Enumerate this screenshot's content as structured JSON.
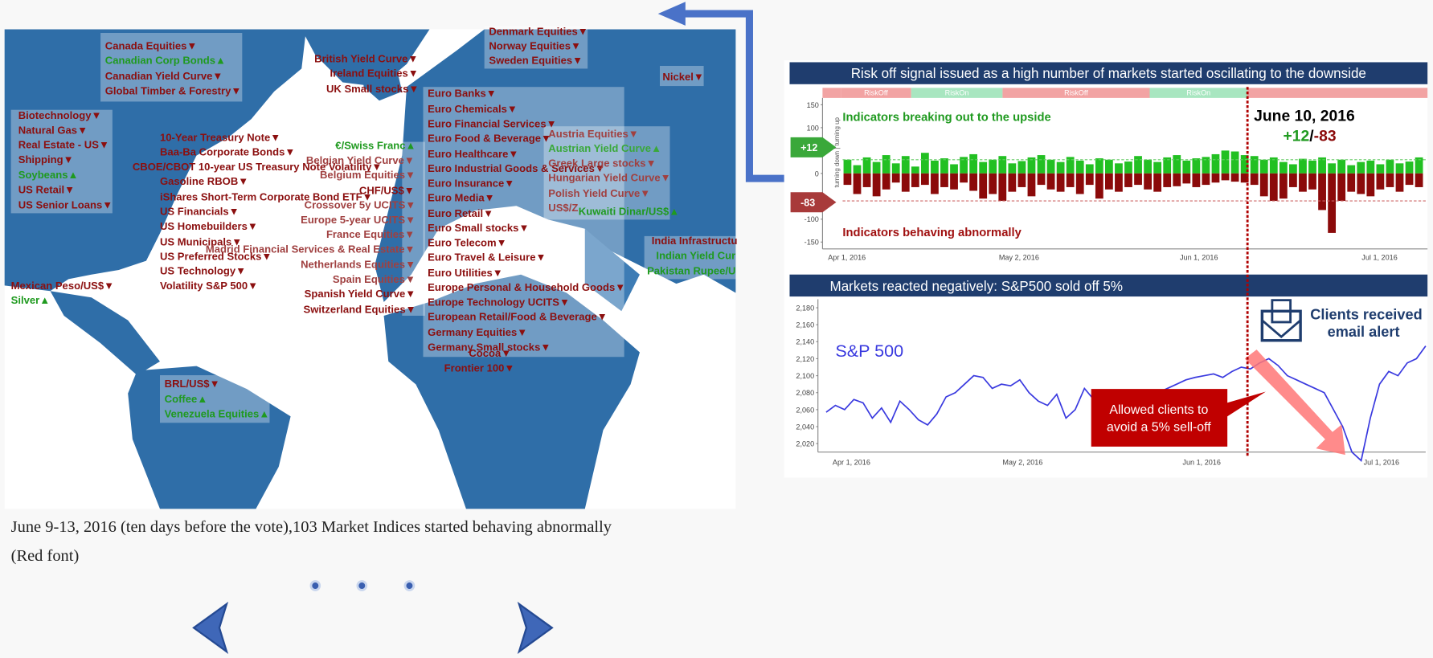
{
  "map_labels": [
    {
      "text": "Canada Equities▼",
      "color": "#8b0f0f"
    },
    {
      "text": "Canadian Corp Bonds▲",
      "color": "#1f9a1f"
    },
    {
      "text": "Canadian Yield Curve▼",
      "color": "#8b0f0f"
    },
    {
      "text": "Global Timber & Forestry▼",
      "color": "#8b0f0f"
    },
    {
      "text": "Biotechnology▼",
      "color": "#8b0f0f"
    },
    {
      "text": "Natural Gas▼",
      "color": "#8b0f0f"
    },
    {
      "text": "Real Estate - US▼",
      "color": "#8b0f0f"
    },
    {
      "text": "Shipping▼",
      "color": "#8b0f0f"
    },
    {
      "text": "Soybeans▲",
      "color": "#1f9a1f"
    },
    {
      "text": "US Retail▼",
      "color": "#8b0f0f"
    },
    {
      "text": "US Senior Loans▼",
      "color": "#8b0f0f"
    },
    {
      "text": "10-Year Treasury Note▼",
      "color": "#8b0f0f"
    },
    {
      "text": "Baa-Ba Corporate Bonds▼",
      "color": "#8b0f0f"
    },
    {
      "text": "CBOE/CBOT 10-year US Treasury Note Volatility▼",
      "color": "#8b0f0f"
    },
    {
      "text": "Gasoline RBOB▼",
      "color": "#8b0f0f"
    },
    {
      "text": "iShares Short-Term Corporate Bond ETF▼",
      "color": "#8b0f0f"
    },
    {
      "text": "US Financials▼",
      "color": "#8b0f0f"
    },
    {
      "text": "US Homebuilders▼",
      "color": "#8b0f0f"
    },
    {
      "text": "US Municipals▼",
      "color": "#8b0f0f"
    },
    {
      "text": "Madrid Financial Services & Real Estate▼",
      "color": "#a04040"
    },
    {
      "text": "US Preferred Stocks▼",
      "color": "#8b0f0f"
    },
    {
      "text": "US Technology▼",
      "color": "#8b0f0f"
    },
    {
      "text": "Volatility S&P 500▼",
      "color": "#8b0f0f"
    },
    {
      "text": "Mexican Peso/US$▼",
      "color": "#8b0f0f"
    },
    {
      "text": "Silver▲",
      "color": "#1f9a1f"
    },
    {
      "text": "BRL/US$▼",
      "color": "#8b0f0f"
    },
    {
      "text": "Coffee▲",
      "color": "#1f9a1f"
    },
    {
      "text": "Venezuela Equities▲",
      "color": "#1f9a1f"
    },
    {
      "text": "British Yield Curve▼",
      "color": "#8b0f0f"
    },
    {
      "text": "Ireland Equities▼",
      "color": "#8b0f0f"
    },
    {
      "text": "UK Small stocks▼",
      "color": "#8b0f0f"
    },
    {
      "text": "€/Swiss Franc▲",
      "color": "#1f9a1f"
    },
    {
      "text": "Belgian Yield Curve▼",
      "color": "#a04040"
    },
    {
      "text": "Belgium Equities▼",
      "color": "#a04040"
    },
    {
      "text": "CHF/US$▼",
      "color": "#8b0f0f"
    },
    {
      "text": "Crossover 5y UCITS▼",
      "color": "#a04040"
    },
    {
      "text": "Europe 5-year UCITS▼",
      "color": "#a04040"
    },
    {
      "text": "France Equities▼",
      "color": "#a04040"
    },
    {
      "text": "Netherlands Equities▼",
      "color": "#a04040"
    },
    {
      "text": "Spain Equities▼",
      "color": "#a04040"
    },
    {
      "text": "Spanish Yield Curve▼",
      "color": "#8b0f0f"
    },
    {
      "text": "Switzerland Equities▼",
      "color": "#8b0f0f"
    },
    {
      "text": "Denmark Equities▼",
      "color": "#8b0f0f"
    },
    {
      "text": "Norway Equities▼",
      "color": "#8b0f0f"
    },
    {
      "text": "Sweden Equities▼",
      "color": "#8b0f0f"
    },
    {
      "text": "Euro Banks▼",
      "color": "#8b0f0f"
    },
    {
      "text": "Euro Chemicals▼",
      "color": "#8b0f0f"
    },
    {
      "text": "Euro Financial Services▼",
      "color": "#8b0f0f"
    },
    {
      "text": "Euro Food & Beverage▼",
      "color": "#8b0f0f"
    },
    {
      "text": "Euro Healthcare▼",
      "color": "#8b0f0f"
    },
    {
      "text": "Euro Industrial Goods & Services▼",
      "color": "#8b0f0f"
    },
    {
      "text": "Euro Insurance▼",
      "color": "#8b0f0f"
    },
    {
      "text": "Euro Media▼",
      "color": "#8b0f0f"
    },
    {
      "text": "Euro Retail▼",
      "color": "#8b0f0f"
    },
    {
      "text": "Euro Small stocks▼",
      "color": "#8b0f0f"
    },
    {
      "text": "Euro Telecom▼",
      "color": "#8b0f0f"
    },
    {
      "text": "Euro Travel & Leisure▼",
      "color": "#8b0f0f"
    },
    {
      "text": "Euro Utilities▼",
      "color": "#8b0f0f"
    },
    {
      "text": "Europe Personal & Household Goods▼",
      "color": "#8b0f0f"
    },
    {
      "text": "Europe Technology UCITS▼",
      "color": "#8b0f0f"
    },
    {
      "text": "European Retail/Food & Beverage▼",
      "color": "#8b0f0f"
    },
    {
      "text": "Germany Equities▼",
      "color": "#8b0f0f"
    },
    {
      "text": "Germany Small stocks▼",
      "color": "#8b0f0f"
    },
    {
      "text": "Cocoa▼",
      "color": "#8b0f0f"
    },
    {
      "text": "Frontier 100▼",
      "color": "#8b0f0f"
    },
    {
      "text": "Austria Equities▼",
      "color": "#a04040"
    },
    {
      "text": "Austrian Yield Curve▲",
      "color": "#3aa83a"
    },
    {
      "text": "Greek Large stocks▼",
      "color": "#a04040"
    },
    {
      "text": "Hungarian Yield Curve▼",
      "color": "#a04040"
    },
    {
      "text": "Polish Yield Curve▼",
      "color": "#a04040"
    },
    {
      "text": "US$/Z",
      "color": "#a04040"
    },
    {
      "text": "Kuwaiti Dinar/US$▲",
      "color": "#1f9a1f"
    },
    {
      "text": "Nickel▼",
      "color": "#8b0f0f"
    },
    {
      "text": "India Infrastructu",
      "color": "#8b0f0f"
    },
    {
      "text": "Indian Yield Cur",
      "color": "#1f9a1f"
    },
    {
      "text": "Pakistan Rupee/U",
      "color": "#1f9a1f"
    }
  ],
  "caption": {
    "line1": "June 9-13, 2016  (ten days before the vote),103 Market Indices started behaving abnormally",
    "line2": "(Red font)"
  },
  "chart_data": [
    {
      "type": "bar",
      "title": "Risk off signal issued as a  high number of markets started oscillating to the downside",
      "regimes": [
        "RiskOff",
        "RiskOn",
        "RiskOff",
        "RiskOn"
      ],
      "annotations": {
        "up": "Indicators breaking out to the upside",
        "down": "Indicators behaving abnormally",
        "date": "June 10, 2016",
        "plus": "+12",
        "slash": "/",
        "minus": "-83",
        "badge_up": "+12",
        "badge_down": "-83",
        "side": "turning down | turning up"
      },
      "xticks": [
        "Apr 1, 2016",
        "May 2, 2016",
        "Jun 1, 2016",
        "Jul 1, 2016"
      ],
      "ylim": [
        -165,
        165
      ],
      "yticks": [
        150,
        100,
        50,
        0,
        -50,
        -100,
        -150
      ],
      "series": [
        {
          "name": "up",
          "color": "#22c022",
          "values": [
            30,
            18,
            35,
            25,
            40,
            22,
            38,
            15,
            45,
            28,
            33,
            20,
            36,
            42,
            25,
            30,
            38,
            22,
            27,
            35,
            40,
            30,
            25,
            36,
            28,
            20,
            33,
            30,
            22,
            26,
            38,
            30,
            25,
            35,
            40,
            28,
            33,
            36,
            42,
            50,
            48,
            40,
            38,
            30,
            35,
            25,
            20,
            32,
            28,
            35,
            22,
            30,
            18,
            25,
            28,
            20,
            30,
            22,
            26,
            35
          ]
        },
        {
          "name": "down",
          "color": "#8b0a0a",
          "values": [
            -25,
            -45,
            -30,
            -50,
            -35,
            -20,
            -40,
            -30,
            -25,
            -45,
            -30,
            -35,
            -20,
            -38,
            -55,
            -45,
            -60,
            -40,
            -30,
            -50,
            -25,
            -35,
            -40,
            -30,
            -45,
            -25,
            -55,
            -35,
            -40,
            -30,
            -25,
            -35,
            -40,
            -30,
            -28,
            -22,
            -30,
            -25,
            -20,
            -15,
            -18,
            -20,
            -25,
            -50,
            -60,
            -55,
            -30,
            -40,
            -35,
            -80,
            -130,
            -60,
            -40,
            -45,
            -50,
            -35,
            -30,
            -40,
            -25,
            -30
          ]
        }
      ]
    },
    {
      "type": "line",
      "title": "Markets reacted negatively: S&P500 sold off 5%",
      "series_label": "S&P 500",
      "color": "#3a3adf",
      "annotations": {
        "alert1": "Clients received",
        "alert2": "email alert",
        "box1": "Allowed clients to",
        "box2": "avoid a 5% sell-off"
      },
      "xticks": [
        "Apr 1, 2016",
        "May 2, 2016",
        "Jun 1, 2016",
        "Jul 1, 2016"
      ],
      "ylim": [
        2010,
        2190
      ],
      "yticks": [
        {
          "value": 2180,
          "label": "2,180"
        },
        {
          "value": 2160,
          "label": "2,160"
        },
        {
          "value": 2140,
          "label": "2,140"
        },
        {
          "value": 2120,
          "label": "2,120"
        },
        {
          "value": 2100,
          "label": "2,100"
        },
        {
          "value": 2080,
          "label": "2,080"
        },
        {
          "value": 2060,
          "label": "2,060"
        },
        {
          "value": 2040,
          "label": "2,040"
        },
        {
          "value": 2020,
          "label": "2,020"
        }
      ],
      "values": [
        2057,
        2065,
        2060,
        2072,
        2068,
        2050,
        2062,
        2045,
        2070,
        2060,
        2048,
        2042,
        2055,
        2075,
        2080,
        2090,
        2100,
        2098,
        2085,
        2090,
        2088,
        2095,
        2080,
        2070,
        2065,
        2078,
        2050,
        2060,
        2085,
        2072,
        2068,
        2050,
        2048,
        2065,
        2060,
        2075,
        2080,
        2085,
        2090,
        2095,
        2098,
        2100,
        2102,
        2098,
        2105,
        2110,
        2108,
        2115,
        2120,
        2112,
        2100,
        2095,
        2090,
        2085,
        2080,
        2060,
        2040,
        2010,
        2000,
        2050,
        2090,
        2105,
        2100,
        2115,
        2120,
        2135
      ]
    }
  ]
}
